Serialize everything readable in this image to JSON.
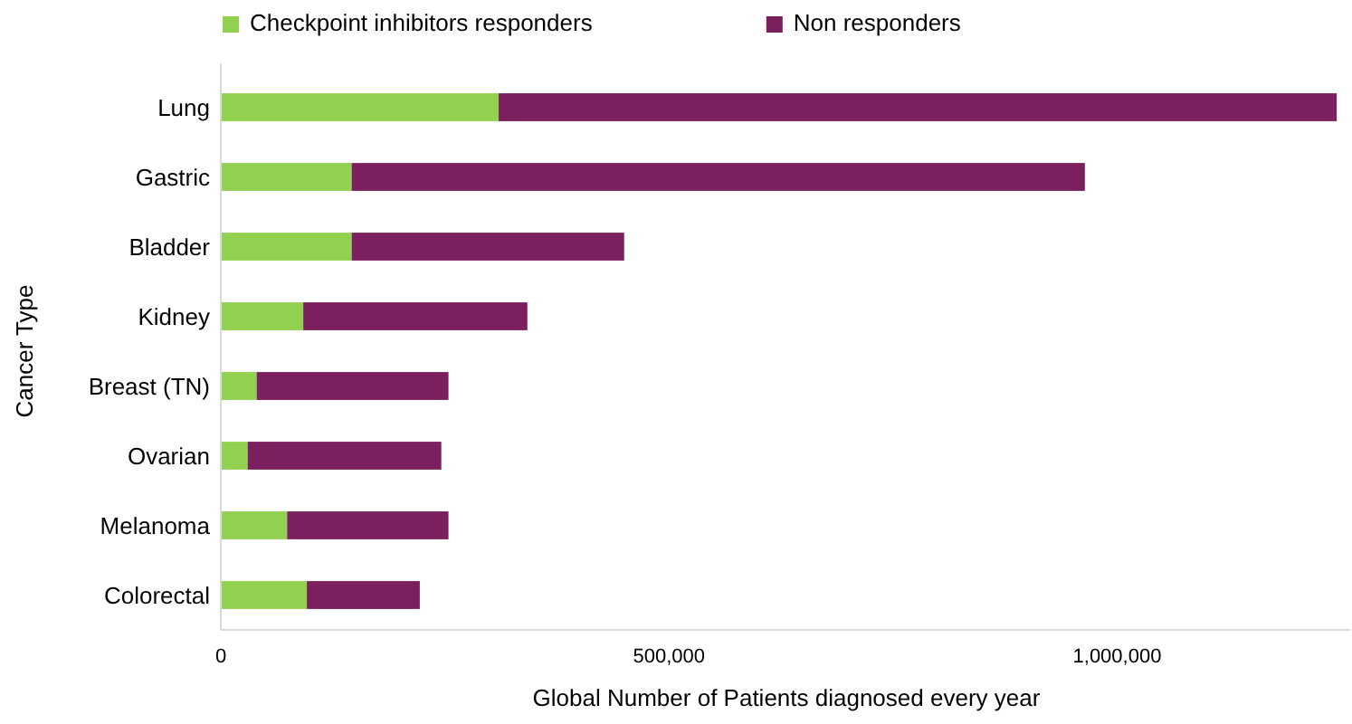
{
  "chart_data": {
    "type": "bar",
    "orientation": "horizontal",
    "stacked": true,
    "xlabel": "Global Number of Patients diagnosed every year",
    "ylabel": "Cancer Type",
    "categories": [
      "Lung",
      "Gastric",
      "Bladder",
      "Kidney",
      "Breast (TN)",
      "Ovarian",
      "Melanoma",
      "Colorectal"
    ],
    "series": [
      {
        "name": "Checkpoint inhibitors responders",
        "color": "#92d050",
        "values": [
          310000,
          146000,
          146000,
          92000,
          40000,
          30000,
          74000,
          96000
        ]
      },
      {
        "name": "Non responders",
        "color": "#7b1f5f",
        "values": [
          935000,
          818000,
          304000,
          250000,
          214000,
          216000,
          180000,
          126000
        ]
      }
    ],
    "xlim": [
      0,
      1260000
    ],
    "xticks": [
      0,
      {
        "value": 500000,
        "label": "500,000"
      },
      {
        "value": 1000000,
        "label": "1,000,000"
      }
    ],
    "legend": "top",
    "grid": false
  }
}
